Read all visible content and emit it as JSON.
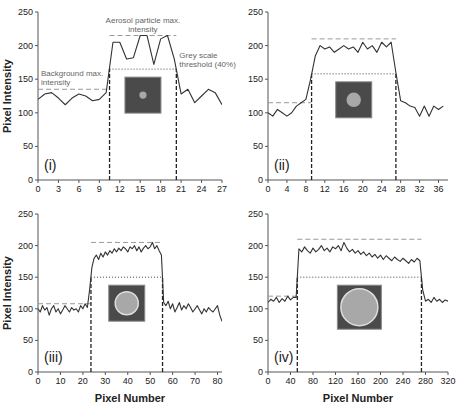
{
  "chart_data": [
    {
      "type": "line",
      "title": "(i)",
      "y_label": "Pixel Intensity",
      "color": "#333333",
      "x": [
        0,
        1,
        2,
        3,
        4,
        5,
        6,
        7,
        8,
        9,
        10,
        11,
        12,
        13,
        14,
        15,
        16,
        17,
        18,
        19,
        20,
        21,
        22,
        23,
        24,
        25,
        26,
        27
      ],
      "values": [
        120,
        128,
        130,
        122,
        112,
        122,
        128,
        125,
        118,
        120,
        130,
        205,
        205,
        180,
        182,
        215,
        215,
        172,
        210,
        215,
        180,
        128,
        135,
        115,
        125,
        135,
        130,
        112
      ],
      "xlim": [
        0,
        27
      ],
      "xticks": [
        0,
        3,
        6,
        9,
        12,
        15,
        18,
        21,
        24,
        27
      ],
      "ylim": [
        0,
        250
      ],
      "yticks": [
        0,
        50,
        100,
        150,
        200,
        250
      ],
      "background_max": 135,
      "particle_max": 215,
      "threshold": 165,
      "edges": [
        10.5,
        20.3
      ],
      "annotations": {
        "particle_max": "Aerosol particle max. intensity",
        "background_max": "Background max. intensity",
        "threshold": "Grey scale threshold (40%)"
      }
    },
    {
      "type": "line",
      "title": "(ii)",
      "color": "#333333",
      "x": [
        0,
        1,
        2,
        3,
        4,
        5,
        6,
        7,
        8,
        9,
        10,
        11,
        12,
        13,
        14,
        15,
        16,
        17,
        18,
        19,
        20,
        21,
        22,
        23,
        24,
        25,
        26,
        27,
        28,
        29,
        30,
        31,
        32,
        33,
        34,
        35,
        36,
        37
      ],
      "values": [
        100,
        95,
        105,
        100,
        95,
        100,
        110,
        115,
        120,
        150,
        185,
        200,
        195,
        198,
        190,
        195,
        200,
        195,
        198,
        190,
        205,
        195,
        200,
        190,
        205,
        198,
        205,
        160,
        118,
        115,
        110,
        108,
        95,
        110,
        95,
        110,
        105,
        110
      ],
      "xlim": [
        0,
        38
      ],
      "xticks": [
        0,
        4,
        8,
        12,
        16,
        20,
        24,
        28,
        32,
        36
      ],
      "ylim": [
        0,
        250
      ],
      "yticks": [
        0,
        50,
        100,
        150,
        200,
        250
      ],
      "background_max": 115,
      "particle_max": 210,
      "threshold": 158,
      "edges": [
        9.2,
        27.0
      ]
    },
    {
      "type": "line",
      "title": "(iii)",
      "y_label": "Pixel Intensity",
      "x_label": "Pixel Number",
      "color": "#333333",
      "x": [
        0,
        1,
        2,
        3,
        4,
        5,
        6,
        7,
        8,
        9,
        10,
        11,
        12,
        13,
        14,
        15,
        16,
        17,
        18,
        19,
        20,
        21,
        22,
        23,
        24,
        25,
        26,
        27,
        28,
        29,
        30,
        31,
        32,
        33,
        34,
        35,
        36,
        37,
        38,
        39,
        40,
        41,
        42,
        43,
        44,
        45,
        46,
        47,
        48,
        49,
        50,
        51,
        52,
        53,
        54,
        55,
        56,
        57,
        58,
        59,
        60,
        61,
        62,
        63,
        64,
        65,
        66,
        67,
        68,
        69,
        70,
        71,
        72,
        73,
        74,
        75,
        76,
        77,
        78,
        79,
        80,
        81,
        82
      ],
      "values": [
        100,
        95,
        105,
        98,
        102,
        90,
        100,
        105,
        95,
        100,
        92,
        98,
        105,
        100,
        95,
        102,
        98,
        100,
        95,
        105,
        100,
        108,
        102,
        130,
        165,
        180,
        185,
        178,
        188,
        182,
        190,
        185,
        192,
        188,
        195,
        190,
        196,
        192,
        198,
        195,
        190,
        198,
        195,
        200,
        192,
        198,
        190,
        196,
        200,
        195,
        198,
        205,
        195,
        200,
        192,
        185,
        110,
        105,
        112,
        100,
        108,
        95,
        102,
        110,
        98,
        105,
        100,
        108,
        102,
        95,
        100,
        105,
        98,
        92,
        100,
        95,
        102,
        98,
        95,
        100,
        105,
        90,
        80
      ],
      "xlim": [
        0,
        82
      ],
      "xticks": [
        0,
        10,
        20,
        30,
        40,
        50,
        60,
        70,
        80
      ],
      "ylim": [
        0,
        250
      ],
      "yticks": [
        0,
        50,
        100,
        150,
        200,
        250
      ],
      "background_max": 108,
      "particle_max": 205,
      "threshold": 150,
      "edges": [
        23.6,
        55.5
      ]
    },
    {
      "type": "line",
      "title": "(iv)",
      "x_label": "Pixel Number",
      "color": "#333333",
      "x": [
        0,
        5,
        10,
        15,
        20,
        25,
        30,
        35,
        40,
        45,
        50,
        55,
        60,
        65,
        70,
        75,
        80,
        85,
        90,
        95,
        100,
        105,
        110,
        115,
        120,
        125,
        130,
        135,
        140,
        145,
        150,
        155,
        160,
        165,
        170,
        175,
        180,
        185,
        190,
        195,
        200,
        205,
        210,
        215,
        220,
        225,
        230,
        235,
        240,
        245,
        250,
        255,
        260,
        265,
        270,
        275,
        280,
        285,
        290,
        295,
        300,
        305,
        310,
        315,
        320
      ],
      "values": [
        110,
        115,
        112,
        118,
        110,
        116,
        112,
        120,
        114,
        118,
        118,
        195,
        190,
        198,
        192,
        188,
        196,
        190,
        194,
        200,
        192,
        196,
        190,
        198,
        195,
        200,
        192,
        205,
        196,
        190,
        194,
        188,
        192,
        186,
        190,
        184,
        188,
        182,
        186,
        180,
        185,
        178,
        184,
        180,
        176,
        182,
        178,
        175,
        180,
        176,
        172,
        178,
        174,
        180,
        176,
        130,
        112,
        115,
        110,
        118,
        112,
        115,
        110,
        114,
        112
      ],
      "xlim": [
        0,
        320
      ],
      "xticks": [
        0,
        40,
        80,
        120,
        160,
        200,
        240,
        280,
        320
      ],
      "ylim": [
        0,
        250
      ],
      "yticks": [
        0,
        50,
        100,
        150,
        200,
        250
      ],
      "background_max": 120,
      "particle_max": 210,
      "threshold": 150,
      "edges": [
        52.1,
        272.8
      ]
    }
  ]
}
